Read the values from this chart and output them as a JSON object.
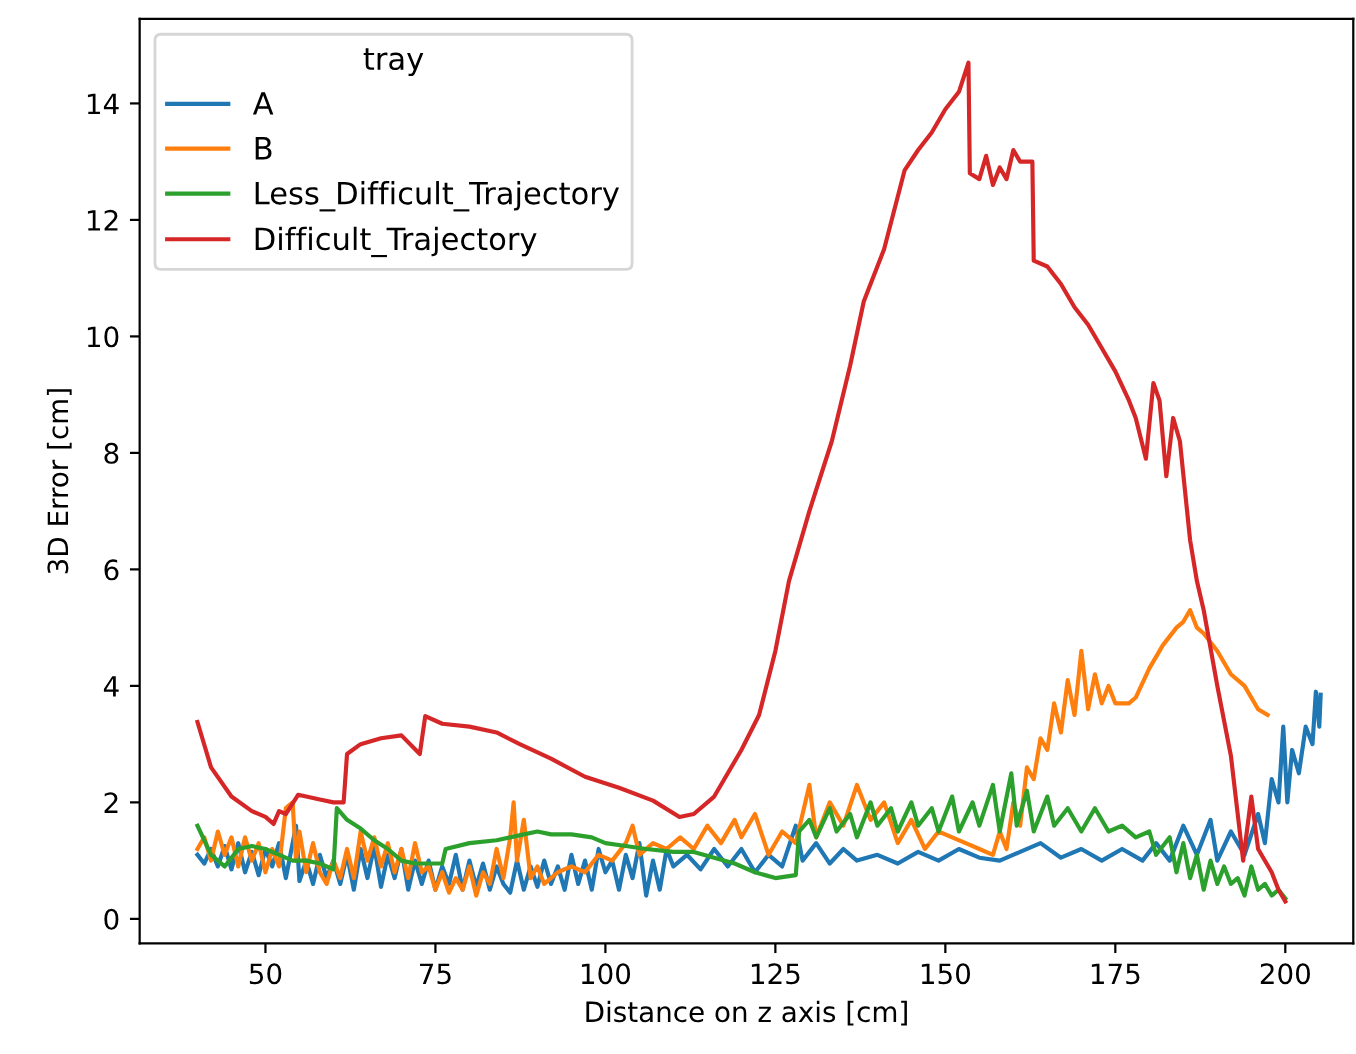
{
  "chart_data": {
    "type": "line",
    "xlabel": "Distance on z axis [cm]",
    "ylabel": "3D Error [cm]",
    "legend_title": "tray",
    "legend": "top left",
    "grid": false,
    "xlim": [
      31.5,
      210
    ],
    "xticks": [
      50,
      75,
      100,
      125,
      150,
      175,
      200
    ],
    "ylim": [
      -0.42,
      15.45
    ],
    "yticks": [
      0,
      2,
      4,
      6,
      8,
      10,
      12,
      14
    ],
    "series": [
      {
        "name": "A",
        "color": "#1f77b4",
        "x": [
          40,
          41,
          42,
          43,
          44,
          45,
          46,
          47,
          48,
          49,
          50,
          51,
          52,
          53,
          54.5,
          55,
          56,
          57,
          58,
          59,
          60,
          61,
          62,
          63,
          64,
          65,
          66,
          67,
          68,
          69,
          70,
          71,
          72,
          73,
          74,
          75,
          76,
          77,
          78,
          79,
          80,
          81,
          82,
          83,
          84,
          85,
          86,
          87,
          88,
          89,
          90,
          91,
          92,
          93,
          94,
          95,
          96,
          97,
          98,
          99,
          100,
          101,
          102,
          103,
          104,
          105,
          106,
          107,
          108,
          109,
          110,
          112,
          114,
          116,
          118,
          120,
          122,
          124,
          126,
          128,
          129,
          131,
          133,
          135,
          137,
          140,
          143,
          146,
          149,
          152,
          155,
          158,
          161,
          164,
          167,
          170,
          173,
          176,
          179,
          181,
          183,
          185,
          187,
          189,
          190,
          192,
          194,
          196,
          197,
          198,
          199,
          199.7,
          200.3,
          201,
          202,
          203,
          204,
          204.5,
          205,
          205.2
        ],
        "values": [
          1.1,
          0.95,
          1.2,
          0.9,
          1.25,
          0.85,
          1.3,
          0.8,
          1.15,
          0.75,
          1.2,
          0.9,
          1.3,
          0.7,
          1.6,
          0.65,
          1.0,
          0.6,
          1.1,
          0.7,
          1.0,
          0.6,
          1.1,
          0.5,
          1.2,
          0.7,
          1.25,
          0.55,
          1.1,
          0.7,
          1.2,
          0.5,
          1.0,
          0.6,
          1.0,
          0.5,
          0.9,
          0.6,
          1.1,
          0.5,
          1.0,
          0.55,
          0.95,
          0.5,
          0.9,
          0.6,
          0.45,
          1.0,
          0.5,
          0.9,
          0.55,
          1.0,
          0.6,
          0.9,
          0.5,
          1.1,
          0.6,
          1.0,
          0.5,
          1.2,
          0.8,
          1.0,
          0.5,
          1.1,
          0.7,
          1.3,
          0.4,
          1.0,
          0.5,
          1.2,
          0.9,
          1.1,
          0.85,
          1.2,
          0.9,
          1.2,
          0.8,
          1.1,
          0.9,
          1.6,
          1.0,
          1.3,
          0.95,
          1.2,
          1.0,
          1.1,
          0.95,
          1.15,
          1.0,
          1.2,
          1.05,
          1.0,
          1.15,
          1.3,
          1.05,
          1.2,
          1.0,
          1.2,
          1.0,
          1.3,
          1.0,
          1.6,
          1.1,
          1.7,
          1.0,
          1.5,
          1.1,
          1.8,
          1.3,
          2.4,
          2.0,
          3.3,
          2.0,
          2.9,
          2.5,
          3.3,
          3.0,
          3.9,
          3.3,
          3.85
        ]
      },
      {
        "name": "B",
        "color": "#ff7f0e",
        "x": [
          40,
          41,
          42,
          43,
          44,
          45,
          46,
          47,
          48,
          49,
          50,
          51,
          52,
          53,
          54,
          54.5,
          55,
          56,
          57,
          58,
          59,
          60,
          61,
          62,
          63,
          64,
          65,
          66,
          67,
          68,
          69,
          70,
          71,
          72,
          73,
          74,
          75,
          76,
          77,
          78,
          79,
          80,
          81,
          82,
          83,
          84,
          85,
          86,
          86.5,
          87,
          88,
          89,
          90,
          91,
          93,
          95,
          97,
          99,
          101,
          103,
          104,
          105,
          107,
          109,
          111,
          113,
          115,
          117,
          119,
          120,
          122,
          124,
          126,
          128,
          130,
          131,
          133,
          135,
          137,
          139,
          141,
          143,
          145,
          147,
          149,
          151,
          153,
          155,
          157,
          158,
          159,
          160,
          161,
          162,
          163,
          164,
          165,
          166,
          167,
          168,
          169,
          170,
          171,
          172,
          173,
          174,
          175,
          177,
          178,
          180,
          182,
          184,
          185,
          186,
          187,
          188,
          190,
          192,
          194,
          196,
          197.4
        ],
        "values": [
          1.2,
          1.4,
          1.0,
          1.5,
          1.1,
          1.4,
          0.9,
          1.4,
          1.0,
          1.3,
          0.8,
          1.2,
          0.9,
          1.9,
          2.0,
          1.0,
          1.5,
          0.8,
          1.3,
          0.8,
          0.6,
          1.0,
          0.7,
          1.2,
          0.7,
          1.5,
          1.0,
          1.4,
          0.9,
          1.3,
          0.8,
          1.2,
          0.7,
          1.3,
          0.8,
          0.9,
          0.5,
          0.8,
          0.45,
          0.7,
          0.5,
          0.9,
          0.4,
          0.8,
          0.6,
          1.2,
          0.7,
          1.4,
          2.0,
          1.0,
          1.7,
          0.7,
          0.9,
          0.6,
          0.8,
          0.9,
          0.8,
          1.1,
          1.0,
          1.3,
          1.6,
          1.1,
          1.3,
          1.2,
          1.4,
          1.2,
          1.6,
          1.3,
          1.7,
          1.4,
          1.8,
          1.1,
          1.5,
          1.3,
          2.3,
          1.4,
          2.0,
          1.6,
          2.3,
          1.7,
          2.0,
          1.3,
          1.7,
          1.2,
          1.5,
          1.4,
          1.3,
          1.2,
          1.1,
          1.5,
          1.2,
          2.0,
          1.6,
          2.6,
          2.4,
          3.1,
          2.9,
          3.7,
          3.2,
          4.1,
          3.5,
          4.6,
          3.6,
          4.2,
          3.7,
          4.0,
          3.7,
          3.7,
          3.8,
          4.3,
          4.7,
          5.0,
          5.1,
          5.3,
          5.0,
          4.9,
          4.6,
          4.2,
          4.0,
          3.6,
          3.5
        ]
      },
      {
        "name": "Less_Difficult_Trajectory",
        "color": "#2ca02c",
        "x": [
          40,
          42,
          44,
          46,
          48,
          50,
          52,
          54,
          56,
          58,
          60,
          60.5,
          62,
          64,
          66,
          68,
          70,
          72,
          74,
          76,
          76.5,
          80,
          84,
          88,
          90,
          92,
          95,
          98,
          100,
          103,
          106,
          110,
          113,
          116,
          119,
          122,
          125,
          128,
          128.5,
          130,
          131,
          133,
          134,
          136,
          137,
          139,
          140,
          142,
          143,
          145,
          146,
          148,
          149,
          151,
          152,
          154,
          155,
          157,
          158,
          159.7,
          160.5,
          162,
          163,
          165,
          166,
          168,
          170,
          172,
          174,
          176,
          178,
          180,
          181,
          183,
          184,
          185,
          186,
          187,
          188,
          189,
          190,
          191,
          192,
          193,
          194,
          195,
          196,
          197,
          198,
          199,
          200
        ],
        "values": [
          1.6,
          1.1,
          0.9,
          1.2,
          1.25,
          1.2,
          1.1,
          1.0,
          1.0,
          0.95,
          0.85,
          1.9,
          1.7,
          1.55,
          1.35,
          1.2,
          1.0,
          0.95,
          0.95,
          0.95,
          1.2,
          1.3,
          1.35,
          1.45,
          1.5,
          1.45,
          1.45,
          1.4,
          1.3,
          1.25,
          1.2,
          1.15,
          1.15,
          1.05,
          0.95,
          0.8,
          0.7,
          0.75,
          1.5,
          1.7,
          1.4,
          1.9,
          1.5,
          1.8,
          1.4,
          2.0,
          1.6,
          1.9,
          1.5,
          2.0,
          1.6,
          1.9,
          1.5,
          2.1,
          1.5,
          2.0,
          1.6,
          2.3,
          1.5,
          2.5,
          1.6,
          2.2,
          1.5,
          2.1,
          1.6,
          1.9,
          1.5,
          1.9,
          1.5,
          1.6,
          1.4,
          1.5,
          1.1,
          1.4,
          0.8,
          1.3,
          0.7,
          1.1,
          0.5,
          1.0,
          0.6,
          0.9,
          0.6,
          0.7,
          0.4,
          0.9,
          0.5,
          0.6,
          0.4,
          0.5,
          0.35
        ]
      },
      {
        "name": "Difficult_Trajectory",
        "color": "#d62728",
        "x": [
          40,
          42,
          45,
          48,
          50,
          51.2,
          52,
          53,
          54.8,
          56,
          58,
          60,
          61.5,
          62,
          64,
          67,
          70,
          72.7,
          73.5,
          76,
          80,
          84,
          87.4,
          92,
          97,
          102,
          107,
          110.9,
          113,
          116,
          118,
          120,
          122.6,
          125,
          127,
          130,
          133.3,
          136,
          138,
          141,
          144,
          146,
          148,
          150,
          152,
          153.4,
          153.6,
          155,
          156,
          157,
          158,
          159,
          160,
          161,
          162.8,
          163,
          165,
          167,
          169,
          171,
          173,
          175,
          177,
          178,
          179.5,
          180.6,
          181.5,
          182.5,
          183.5,
          184.5,
          186,
          187,
          188,
          190,
          192,
          193.8,
          195,
          196,
          198,
          199,
          200
        ],
        "values": [
          3.38,
          2.6,
          2.1,
          1.85,
          1.75,
          1.63,
          1.85,
          1.8,
          2.13,
          2.1,
          2.05,
          2.0,
          2.0,
          2.83,
          3.0,
          3.1,
          3.15,
          2.83,
          3.48,
          3.35,
          3.3,
          3.2,
          3.0,
          2.75,
          2.44,
          2.25,
          2.03,
          1.75,
          1.8,
          2.1,
          2.5,
          2.9,
          3.5,
          4.6,
          5.8,
          7.0,
          8.2,
          9.5,
          10.6,
          11.5,
          12.85,
          13.2,
          13.5,
          13.9,
          14.2,
          14.7,
          12.8,
          12.7,
          13.1,
          12.6,
          12.9,
          12.7,
          13.2,
          13.0,
          13.0,
          11.3,
          11.2,
          10.9,
          10.5,
          10.2,
          9.8,
          9.4,
          8.9,
          8.6,
          7.9,
          9.2,
          8.9,
          7.6,
          8.6,
          8.2,
          6.5,
          5.8,
          5.3,
          4.0,
          2.8,
          1.0,
          2.1,
          1.2,
          0.8,
          0.5,
          0.3
        ]
      }
    ]
  }
}
